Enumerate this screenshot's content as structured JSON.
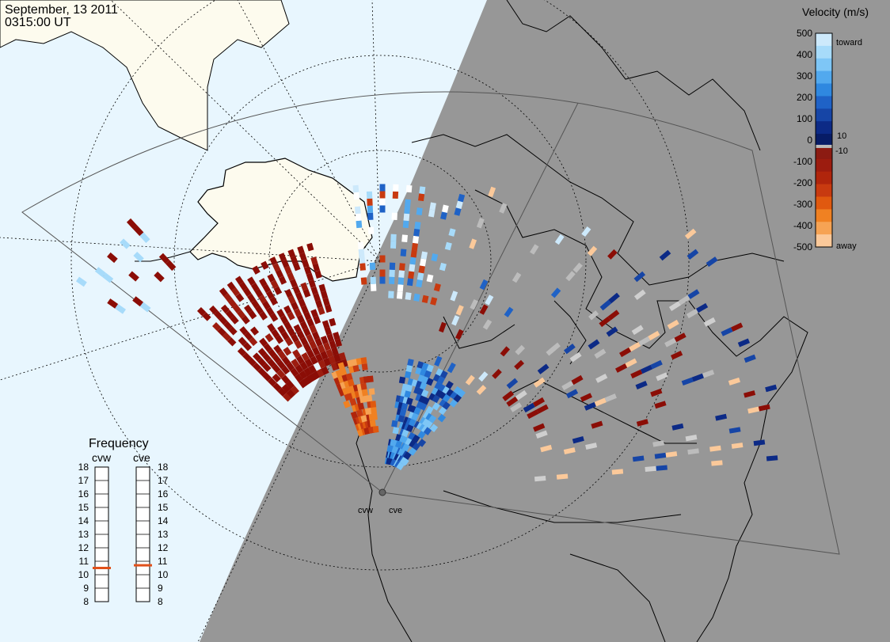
{
  "header": {
    "date": "September, 13 2011",
    "time": "0315:00 UT"
  },
  "velocity_scale": {
    "title": "Velocity (m/s)",
    "toward_label": "toward",
    "away_label": "away",
    "ticks": [
      "500",
      "400",
      "300",
      "200",
      "100",
      "0",
      "-100",
      "-200",
      "-300",
      "-400",
      "-500"
    ],
    "inner_plus": "10",
    "inner_minus": "-10",
    "colors": [
      "#cde9fb",
      "#a7dbfa",
      "#7ec6f6",
      "#52a9ee",
      "#2f88e0",
      "#1f62c6",
      "#1645a6",
      "#0c2a86",
      "#071c66",
      "#8c1b12",
      "#9c1c0f",
      "#b0250c",
      "#c83a10",
      "#e0590f",
      "#f08122",
      "#f6a354",
      "#fbc99a"
    ]
  },
  "frequency": {
    "title": "Frequency",
    "columns": [
      {
        "name": "cvw",
        "value": 10.5
      },
      {
        "name": "cve",
        "value": 10.7
      }
    ],
    "scale": [
      "18",
      "17",
      "16",
      "15",
      "14",
      "13",
      "12",
      "11",
      "10",
      "9",
      "8"
    ],
    "marker_color": "#e0501a"
  },
  "radars": [
    {
      "name": "cvw"
    },
    {
      "name": "cve"
    }
  ],
  "map_colors": {
    "ocean": "#e8f6fe",
    "land_day": "#fdfbee",
    "night": "#979797",
    "coast": "#000000",
    "grid": "#000000"
  }
}
